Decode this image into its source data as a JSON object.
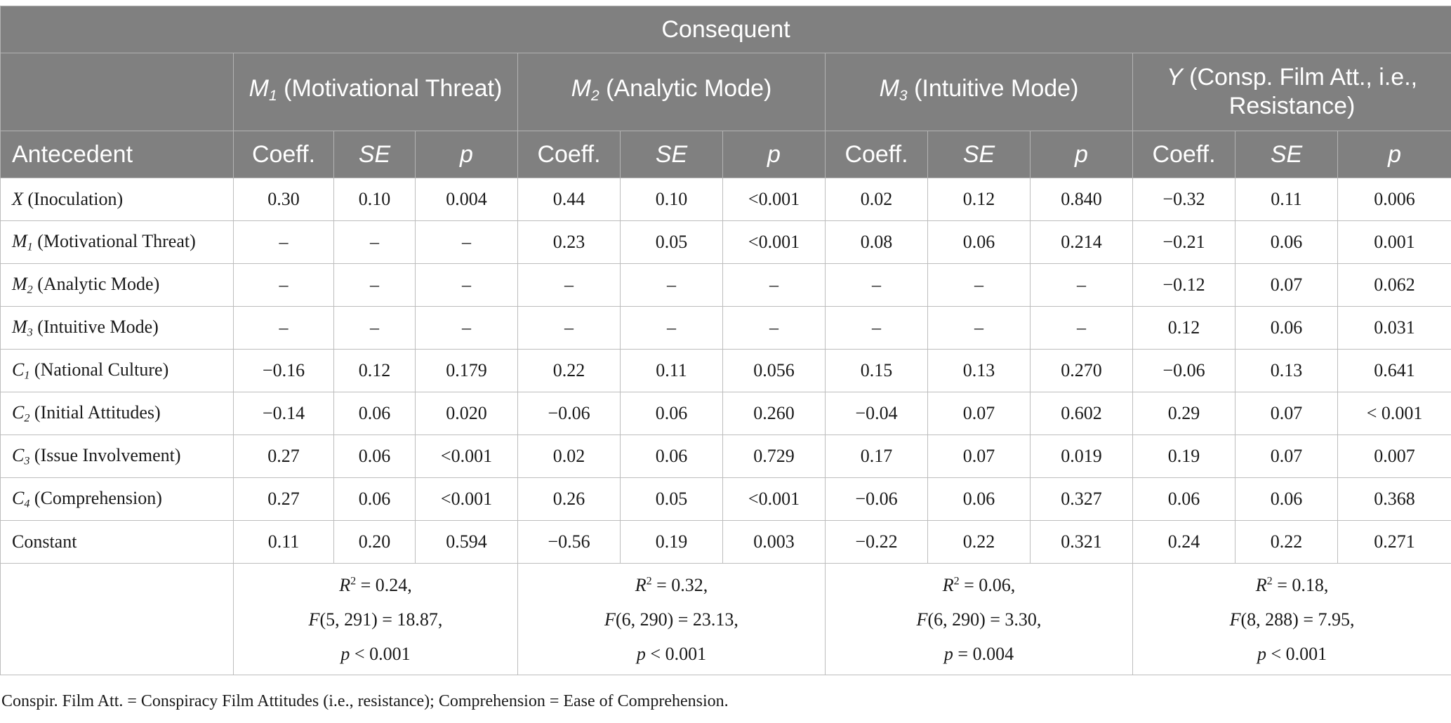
{
  "header": {
    "consequent": "Consequent",
    "models": [
      {
        "sym": "M",
        "sub": "1",
        "label": " (Motivational Threat)"
      },
      {
        "sym": "M",
        "sub": "2",
        "label": " (Analytic Mode)"
      },
      {
        "sym": "M",
        "sub": "3",
        "label": " (Intuitive Mode)"
      },
      {
        "sym": "Y",
        "sub": "",
        "label": " (Consp. Film Att., i.e., Resistance)"
      }
    ],
    "antecedent": "Antecedent",
    "stat_cols": [
      "Coeff.",
      "SE",
      "p"
    ]
  },
  "rows": [
    {
      "sym": "X",
      "sub": "",
      "label": " (Inoculation)",
      "values": [
        "0.30",
        "0.10",
        "0.004",
        "0.44",
        "0.10",
        "<0.001",
        "0.02",
        "0.12",
        "0.840",
        "−0.32",
        "0.11",
        "0.006"
      ]
    },
    {
      "sym": "M",
      "sub": "1",
      "label": " (Motivational Threat)",
      "values": [
        "–",
        "–",
        "–",
        "0.23",
        "0.05",
        "<0.001",
        "0.08",
        "0.06",
        "0.214",
        "−0.21",
        "0.06",
        "0.001"
      ]
    },
    {
      "sym": "M",
      "sub": "2",
      "label": " (Analytic Mode)",
      "values": [
        "–",
        "–",
        "–",
        "–",
        "–",
        "–",
        "–",
        "–",
        "–",
        "−0.12",
        "0.07",
        "0.062"
      ]
    },
    {
      "sym": "M",
      "sub": "3",
      "label": " (Intuitive Mode)",
      "values": [
        "–",
        "–",
        "–",
        "–",
        "–",
        "–",
        "–",
        "–",
        "–",
        "0.12",
        "0.06",
        "0.031"
      ]
    },
    {
      "sym": "C",
      "sub": "1",
      "label": " (National Culture)",
      "values": [
        "−0.16",
        "0.12",
        "0.179",
        "0.22",
        "0.11",
        "0.056",
        "0.15",
        "0.13",
        "0.270",
        "−0.06",
        "0.13",
        "0.641"
      ]
    },
    {
      "sym": "C",
      "sub": "2",
      "label": " (Initial Attitudes)",
      "values": [
        "−0.14",
        "0.06",
        "0.020",
        "−0.06",
        "0.06",
        "0.260",
        "−0.04",
        "0.07",
        "0.602",
        "0.29",
        "0.07",
        "< 0.001"
      ]
    },
    {
      "sym": "C",
      "sub": "3",
      "label": " (Issue Involvement)",
      "values": [
        "0.27",
        "0.06",
        "<0.001",
        "0.02",
        "0.06",
        "0.729",
        "0.17",
        "0.07",
        "0.019",
        "0.19",
        "0.07",
        "0.007"
      ]
    },
    {
      "sym": "C",
      "sub": "4",
      "label": " (Comprehension)",
      "values": [
        "0.27",
        "0.06",
        "<0.001",
        "0.26",
        "0.05",
        "<0.001",
        "−0.06",
        "0.06",
        "0.327",
        "0.06",
        "0.06",
        "0.368"
      ]
    },
    {
      "sym": "",
      "sub": "",
      "label": "Constant",
      "values": [
        "0.11",
        "0.20",
        "0.594",
        "−0.56",
        "0.19",
        "0.003",
        "−0.22",
        "0.22",
        "0.321",
        "0.24",
        "0.22",
        "0.271"
      ]
    }
  ],
  "fit": [
    {
      "r2": " = 0.24,",
      "f_df": "(5, 291)",
      "f_val": " = 18.87,",
      "p": " < 0.001"
    },
    {
      "r2": " = 0.32,",
      "f_df": "(6, 290)",
      "f_val": " = 23.13,",
      "p": " < 0.001"
    },
    {
      "r2": " = 0.06,",
      "f_df": "(6, 290)",
      "f_val": " = 3.30,",
      "p": " = 0.004"
    },
    {
      "r2": " = 0.18,",
      "f_df": "(8, 288)",
      "f_val": " = 7.95,",
      "p": " < 0.001"
    }
  ],
  "fit_symbols": {
    "r": "R",
    "r_sup": "2",
    "f": "F",
    "p": "p"
  },
  "footnote": "Conspir. Film Att. = Conspiracy Film Attitudes (i.e., resistance); Comprehension = Ease of Comprehension.",
  "colors": {
    "header_bg": "#808080",
    "header_text": "#ffffff",
    "grid": "#bdbdbd"
  }
}
